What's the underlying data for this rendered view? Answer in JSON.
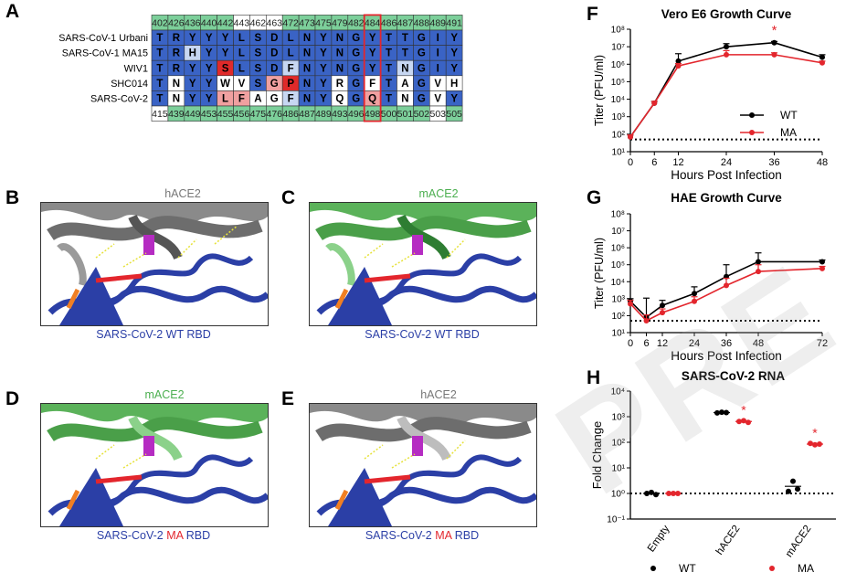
{
  "panels": {
    "A": "A",
    "B": "B",
    "C": "C",
    "D": "D",
    "E": "E",
    "F": "F",
    "G": "G",
    "H": "H"
  },
  "alignment": {
    "top_numbers": [
      "402",
      "426",
      "436",
      "440",
      "442",
      "443",
      "462",
      "463",
      "472",
      "473",
      "475",
      "479",
      "482",
      "484",
      "486",
      "487",
      "488",
      "489",
      "491"
    ],
    "bottom_numbers": [
      "415",
      "439",
      "449",
      "453",
      "455",
      "456",
      "475",
      "476",
      "486",
      "487",
      "489",
      "493",
      "496",
      "498",
      "500",
      "501",
      "502",
      "503",
      "505"
    ],
    "highlighted_column": 13,
    "rows": [
      {
        "name": "SARS-CoV-1 Urbani",
        "residues": [
          "T",
          "R",
          "Y",
          "Y",
          "Y",
          "L",
          "S",
          "D",
          "L",
          "N",
          "Y",
          "N",
          "G",
          "Y",
          "T",
          "T",
          "G",
          "I",
          "Y"
        ]
      },
      {
        "name": "SARS-CoV-1 MA15",
        "residues": [
          "T",
          "R",
          "H",
          "Y",
          "Y",
          "L",
          "S",
          "D",
          "L",
          "N",
          "Y",
          "N",
          "G",
          "Y",
          "T",
          "T",
          "G",
          "I",
          "Y"
        ]
      },
      {
        "name": "WIV1",
        "residues": [
          "T",
          "R",
          "Y",
          "Y",
          "S",
          "L",
          "S",
          "D",
          "F",
          "N",
          "Y",
          "N",
          "G",
          "Y",
          "T",
          "N",
          "G",
          "I",
          "Y"
        ]
      },
      {
        "name": "SHC014",
        "residues": [
          "T",
          "N",
          "Y",
          "Y",
          "W",
          "V",
          "S",
          "G",
          "P",
          "N",
          "Y",
          "R",
          "G",
          "F",
          "T",
          "A",
          "G",
          "V",
          "H"
        ]
      },
      {
        "name": "SARS-CoV-2",
        "residues": [
          "T",
          "N",
          "Y",
          "Y",
          "L",
          "F",
          "A",
          "G",
          "F",
          "N",
          "Y",
          "Q",
          "G",
          "Q",
          "T",
          "N",
          "G",
          "V",
          "Y"
        ]
      }
    ]
  },
  "structures": {
    "B": {
      "top": "hACE2",
      "bottom": "SARS-CoV-2 WT RBD"
    },
    "C": {
      "top": "mACE2",
      "bottom": "SARS-CoV-2 WT RBD"
    },
    "D": {
      "top": "mACE2",
      "bottom_pre": "SARS-CoV-2 ",
      "bottom_ma": "MA",
      "bottom_post": " RBD"
    },
    "E": {
      "top": "hACE2",
      "bottom_pre": "SARS-CoV-2 ",
      "bottom_ma": "MA",
      "bottom_post": " RBD"
    }
  },
  "colors": {
    "wt": "#000000",
    "ma": "#e3262d",
    "rbd": "#2b3fa6",
    "hace2": "#7a7a7a",
    "mace2": "#4caf50",
    "green_cell": "#7ccf9a"
  },
  "chart_data": [
    {
      "id": "F",
      "type": "line",
      "title": "Vero E6 Growth Curve",
      "xlabel": "Hours Post Infection",
      "ylabel": "Titer (PFU/ml)",
      "x": [
        0,
        6,
        12,
        24,
        36,
        48
      ],
      "xticks": [
        "0",
        "6",
        "12",
        "24",
        "36",
        "48"
      ],
      "yscale": "log",
      "ylim": [
        10,
        100000000
      ],
      "yticks": [
        "10¹",
        "10²",
        "10³",
        "10⁴",
        "10⁵",
        "10⁶",
        "10⁷",
        "10⁸"
      ],
      "limit_of_detection": 50,
      "series": [
        {
          "name": "WT",
          "color": "#000000",
          "values": [
            70,
            6000,
            1500000,
            10000000,
            17000000,
            2500000
          ],
          "err": [
            20,
            1500,
            2500000,
            5000000,
            3000000,
            1000000
          ]
        },
        {
          "name": "MA",
          "color": "#e3262d",
          "values": [
            70,
            6000,
            800000,
            3500000,
            3500000,
            1200000
          ],
          "err": [
            20,
            1500,
            300000,
            2500000,
            1000000,
            300000
          ]
        }
      ],
      "annotation": "*",
      "annotation_x": 36,
      "legend": [
        "WT",
        "MA"
      ]
    },
    {
      "id": "G",
      "type": "line",
      "title": "HAE Growth Curve",
      "xlabel": "Hours Post Infection",
      "ylabel": "Titer (PFU/ml)",
      "x": [
        0,
        6,
        12,
        24,
        36,
        48,
        72
      ],
      "xticks": [
        "0",
        "6",
        "12",
        "24",
        "36",
        "48",
        "72"
      ],
      "yscale": "log",
      "ylim": [
        10,
        100000000
      ],
      "yticks": [
        "10¹",
        "10²",
        "10³",
        "10⁴",
        "10⁵",
        "10⁶",
        "10⁷",
        "10⁸"
      ],
      "limit_of_detection": 50,
      "series": [
        {
          "name": "WT",
          "color": "#000000",
          "values": [
            700,
            80,
            400,
            2000,
            20000,
            150000,
            150000
          ],
          "err": [
            300,
            1000,
            400,
            3000,
            80000,
            350000,
            40000
          ]
        },
        {
          "name": "MA",
          "color": "#e3262d",
          "values": [
            500,
            50,
            150,
            700,
            6000,
            40000,
            60000
          ],
          "err": [
            300,
            60,
            100,
            600,
            10000,
            60000,
            20000
          ]
        }
      ]
    },
    {
      "id": "H",
      "type": "scatter",
      "title": "SARS-CoV-2 RNA",
      "ylabel": "Fold Change",
      "yscale": "log",
      "ylim": [
        0.1,
        10000
      ],
      "yticks": [
        "10⁻¹",
        "10⁰",
        "10¹",
        "10²",
        "10³",
        "10⁴"
      ],
      "categories": [
        "Empty",
        "hACE2",
        "mACE2"
      ],
      "baseline": 1,
      "series": [
        {
          "name": "WT",
          "color": "#000000",
          "points": [
            [
              1,
              1.1,
              0.9
            ],
            [
              1400,
              1500,
              1450
            ],
            [
              1.2,
              3,
              1.5
            ]
          ]
        },
        {
          "name": "MA",
          "color": "#e3262d",
          "points": [
            [
              1,
              1,
              1
            ],
            [
              650,
              700,
              600
            ],
            [
              90,
              80,
              85
            ]
          ]
        }
      ],
      "stars": [
        "",
        "*",
        "*"
      ],
      "legend": [
        "WT",
        "MA"
      ]
    }
  ],
  "watermark": "PRE"
}
